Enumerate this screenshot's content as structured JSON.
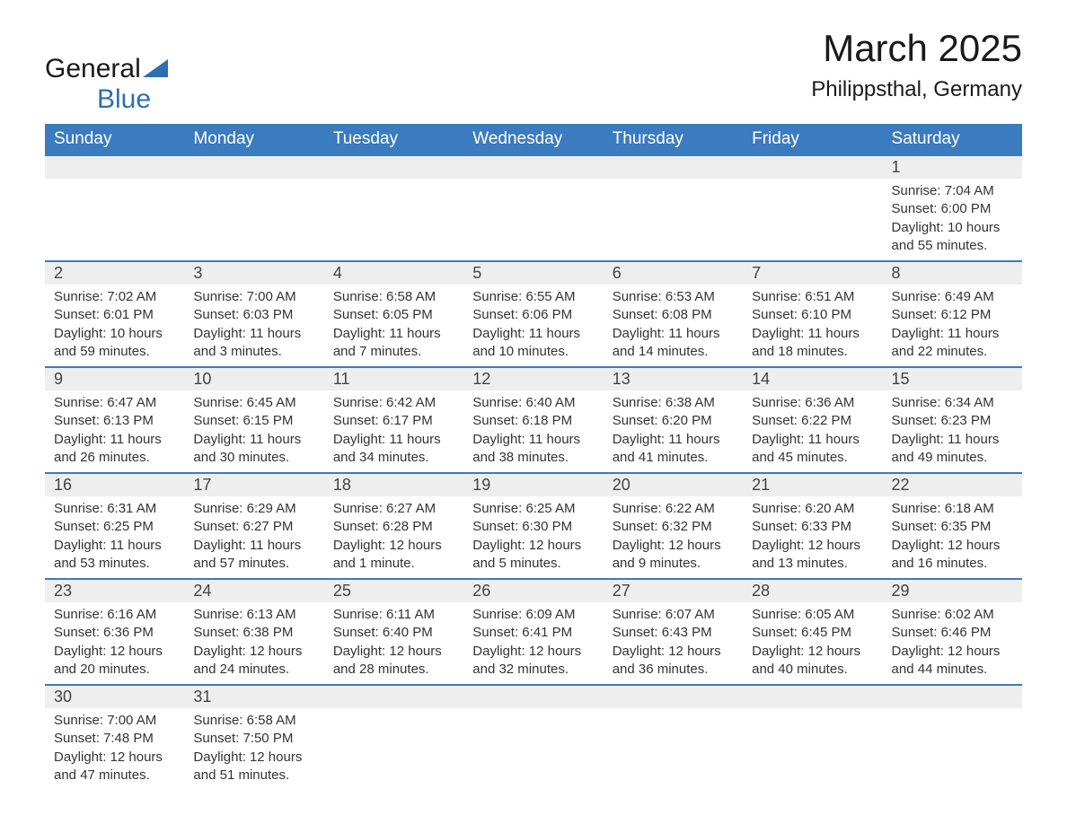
{
  "logo": {
    "text1": "General",
    "text2": "Blue",
    "shape_color": "#2d6fb3"
  },
  "title": "March 2025",
  "location": "Philippsthal, Germany",
  "colors": {
    "header_bg": "#3b7bbf",
    "header_fg": "#ffffff",
    "daynum_bg": "#eeeeee",
    "border": "#3b7bbf",
    "text": "#333333"
  },
  "typography": {
    "title_fontsize": 42,
    "location_fontsize": 24,
    "header_fontsize": 19,
    "daynum_fontsize": 18,
    "detail_fontsize": 15,
    "font_family": "Arial"
  },
  "weekdays": [
    "Sunday",
    "Monday",
    "Tuesday",
    "Wednesday",
    "Thursday",
    "Friday",
    "Saturday"
  ],
  "weeks": [
    [
      null,
      null,
      null,
      null,
      null,
      null,
      {
        "n": "1",
        "sr": "Sunrise: 7:04 AM",
        "ss": "Sunset: 6:00 PM",
        "dl": "Daylight: 10 hours and 55 minutes."
      }
    ],
    [
      {
        "n": "2",
        "sr": "Sunrise: 7:02 AM",
        "ss": "Sunset: 6:01 PM",
        "dl": "Daylight: 10 hours and 59 minutes."
      },
      {
        "n": "3",
        "sr": "Sunrise: 7:00 AM",
        "ss": "Sunset: 6:03 PM",
        "dl": "Daylight: 11 hours and 3 minutes."
      },
      {
        "n": "4",
        "sr": "Sunrise: 6:58 AM",
        "ss": "Sunset: 6:05 PM",
        "dl": "Daylight: 11 hours and 7 minutes."
      },
      {
        "n": "5",
        "sr": "Sunrise: 6:55 AM",
        "ss": "Sunset: 6:06 PM",
        "dl": "Daylight: 11 hours and 10 minutes."
      },
      {
        "n": "6",
        "sr": "Sunrise: 6:53 AM",
        "ss": "Sunset: 6:08 PM",
        "dl": "Daylight: 11 hours and 14 minutes."
      },
      {
        "n": "7",
        "sr": "Sunrise: 6:51 AM",
        "ss": "Sunset: 6:10 PM",
        "dl": "Daylight: 11 hours and 18 minutes."
      },
      {
        "n": "8",
        "sr": "Sunrise: 6:49 AM",
        "ss": "Sunset: 6:12 PM",
        "dl": "Daylight: 11 hours and 22 minutes."
      }
    ],
    [
      {
        "n": "9",
        "sr": "Sunrise: 6:47 AM",
        "ss": "Sunset: 6:13 PM",
        "dl": "Daylight: 11 hours and 26 minutes."
      },
      {
        "n": "10",
        "sr": "Sunrise: 6:45 AM",
        "ss": "Sunset: 6:15 PM",
        "dl": "Daylight: 11 hours and 30 minutes."
      },
      {
        "n": "11",
        "sr": "Sunrise: 6:42 AM",
        "ss": "Sunset: 6:17 PM",
        "dl": "Daylight: 11 hours and 34 minutes."
      },
      {
        "n": "12",
        "sr": "Sunrise: 6:40 AM",
        "ss": "Sunset: 6:18 PM",
        "dl": "Daylight: 11 hours and 38 minutes."
      },
      {
        "n": "13",
        "sr": "Sunrise: 6:38 AM",
        "ss": "Sunset: 6:20 PM",
        "dl": "Daylight: 11 hours and 41 minutes."
      },
      {
        "n": "14",
        "sr": "Sunrise: 6:36 AM",
        "ss": "Sunset: 6:22 PM",
        "dl": "Daylight: 11 hours and 45 minutes."
      },
      {
        "n": "15",
        "sr": "Sunrise: 6:34 AM",
        "ss": "Sunset: 6:23 PM",
        "dl": "Daylight: 11 hours and 49 minutes."
      }
    ],
    [
      {
        "n": "16",
        "sr": "Sunrise: 6:31 AM",
        "ss": "Sunset: 6:25 PM",
        "dl": "Daylight: 11 hours and 53 minutes."
      },
      {
        "n": "17",
        "sr": "Sunrise: 6:29 AM",
        "ss": "Sunset: 6:27 PM",
        "dl": "Daylight: 11 hours and 57 minutes."
      },
      {
        "n": "18",
        "sr": "Sunrise: 6:27 AM",
        "ss": "Sunset: 6:28 PM",
        "dl": "Daylight: 12 hours and 1 minute."
      },
      {
        "n": "19",
        "sr": "Sunrise: 6:25 AM",
        "ss": "Sunset: 6:30 PM",
        "dl": "Daylight: 12 hours and 5 minutes."
      },
      {
        "n": "20",
        "sr": "Sunrise: 6:22 AM",
        "ss": "Sunset: 6:32 PM",
        "dl": "Daylight: 12 hours and 9 minutes."
      },
      {
        "n": "21",
        "sr": "Sunrise: 6:20 AM",
        "ss": "Sunset: 6:33 PM",
        "dl": "Daylight: 12 hours and 13 minutes."
      },
      {
        "n": "22",
        "sr": "Sunrise: 6:18 AM",
        "ss": "Sunset: 6:35 PM",
        "dl": "Daylight: 12 hours and 16 minutes."
      }
    ],
    [
      {
        "n": "23",
        "sr": "Sunrise: 6:16 AM",
        "ss": "Sunset: 6:36 PM",
        "dl": "Daylight: 12 hours and 20 minutes."
      },
      {
        "n": "24",
        "sr": "Sunrise: 6:13 AM",
        "ss": "Sunset: 6:38 PM",
        "dl": "Daylight: 12 hours and 24 minutes."
      },
      {
        "n": "25",
        "sr": "Sunrise: 6:11 AM",
        "ss": "Sunset: 6:40 PM",
        "dl": "Daylight: 12 hours and 28 minutes."
      },
      {
        "n": "26",
        "sr": "Sunrise: 6:09 AM",
        "ss": "Sunset: 6:41 PM",
        "dl": "Daylight: 12 hours and 32 minutes."
      },
      {
        "n": "27",
        "sr": "Sunrise: 6:07 AM",
        "ss": "Sunset: 6:43 PM",
        "dl": "Daylight: 12 hours and 36 minutes."
      },
      {
        "n": "28",
        "sr": "Sunrise: 6:05 AM",
        "ss": "Sunset: 6:45 PM",
        "dl": "Daylight: 12 hours and 40 minutes."
      },
      {
        "n": "29",
        "sr": "Sunrise: 6:02 AM",
        "ss": "Sunset: 6:46 PM",
        "dl": "Daylight: 12 hours and 44 minutes."
      }
    ],
    [
      {
        "n": "30",
        "sr": "Sunrise: 7:00 AM",
        "ss": "Sunset: 7:48 PM",
        "dl": "Daylight: 12 hours and 47 minutes."
      },
      {
        "n": "31",
        "sr": "Sunrise: 6:58 AM",
        "ss": "Sunset: 7:50 PM",
        "dl": "Daylight: 12 hours and 51 minutes."
      },
      null,
      null,
      null,
      null,
      null
    ]
  ]
}
